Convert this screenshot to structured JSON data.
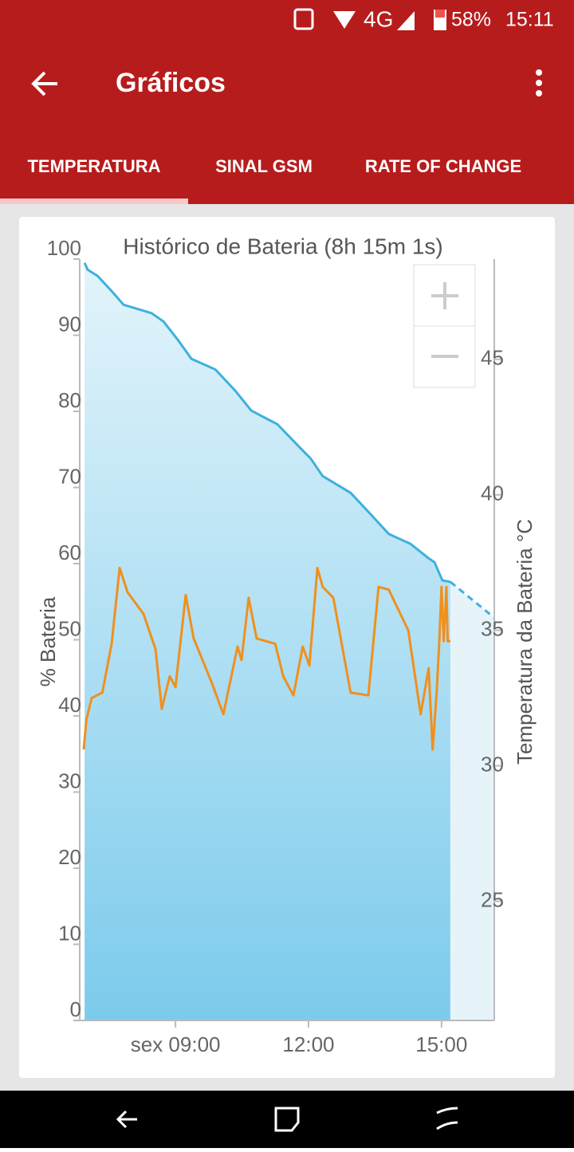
{
  "status_bar": {
    "network": "4G",
    "battery": "58%",
    "time": "15:11"
  },
  "toolbar": {
    "title": "Gráficos"
  },
  "tabs": [
    "TEMPERATURA",
    "SINAL GSM",
    "RATE OF CHANGE"
  ],
  "chart_data": {
    "type": "line",
    "title": "Histórico de Bateria (8h 15m 1s)",
    "y_label": "% Bateria",
    "y2_label": "Temperatura da Bateria °C",
    "xlim": [
      6.84,
      16.19
    ],
    "xticks": [
      {
        "value": 9,
        "label": "sex 09:00"
      },
      {
        "value": 12,
        "label": "12:00"
      },
      {
        "value": 15,
        "label": "15:00"
      }
    ],
    "ylim": [
      0,
      100
    ],
    "yticks": [
      0,
      10,
      20,
      30,
      40,
      50,
      60,
      70,
      80,
      90,
      100
    ],
    "y2lim": [
      20.6,
      48.7
    ],
    "y2ticks": [
      25,
      30,
      35,
      40,
      45
    ],
    "series": [
      {
        "color": "#3fb0dc",
        "fill": true,
        "x": [
          6.95,
          7.02,
          7.24,
          7.56,
          7.83,
          8.46,
          8.73,
          9.04,
          9.36,
          9.9,
          10.35,
          10.71,
          11.3,
          11.78,
          12.05,
          12.32,
          12.95,
          13.4,
          13.81,
          14.3,
          14.71,
          14.84,
          15.02,
          15.2
        ],
        "values": [
          99.5,
          98.6,
          97.8,
          95.8,
          94.0,
          92.9,
          91.8,
          89.5,
          86.9,
          85.5,
          82.7,
          80.1,
          78.3,
          75.4,
          73.8,
          71.5,
          69.3,
          66.5,
          63.9,
          62.6,
          60.7,
          60.2,
          57.8,
          57.6
        ]
      },
      {
        "color": "#3fb0dc",
        "fill": true,
        "dashed": true,
        "x": [
          15.2,
          16.19
        ],
        "values": [
          57.6,
          52.9
        ]
      },
      {
        "color": "#f0901e",
        "axis": "y2",
        "x": [
          6.93,
          6.99,
          7.11,
          7.35,
          7.56,
          7.74,
          7.92,
          8.28,
          8.55,
          8.69,
          8.87,
          9.0,
          9.23,
          9.41,
          9.81,
          10.08,
          10.4,
          10.49,
          10.65,
          10.83,
          11.25,
          11.43,
          11.66,
          11.87,
          12.02,
          12.2,
          12.32,
          12.56,
          12.95,
          13.35,
          13.58,
          13.81,
          14.25,
          14.53,
          14.71,
          14.8,
          14.89,
          14.95,
          15.0,
          15.05,
          15.11,
          15.14,
          15.2
        ],
        "values": [
          30.6,
          31.7,
          32.5,
          32.7,
          34.5,
          37.3,
          36.4,
          35.6,
          34.3,
          32.1,
          33.3,
          32.9,
          36.3,
          34.7,
          33.1,
          31.9,
          34.4,
          33.9,
          36.2,
          34.7,
          34.5,
          33.3,
          32.6,
          34.4,
          33.7,
          37.3,
          36.6,
          36.2,
          32.7,
          32.6,
          36.6,
          36.5,
          35.0,
          31.9,
          33.6,
          30.6,
          32.7,
          34.6,
          36.6,
          34.6,
          36.6,
          34.6,
          34.6
        ]
      }
    ]
  }
}
